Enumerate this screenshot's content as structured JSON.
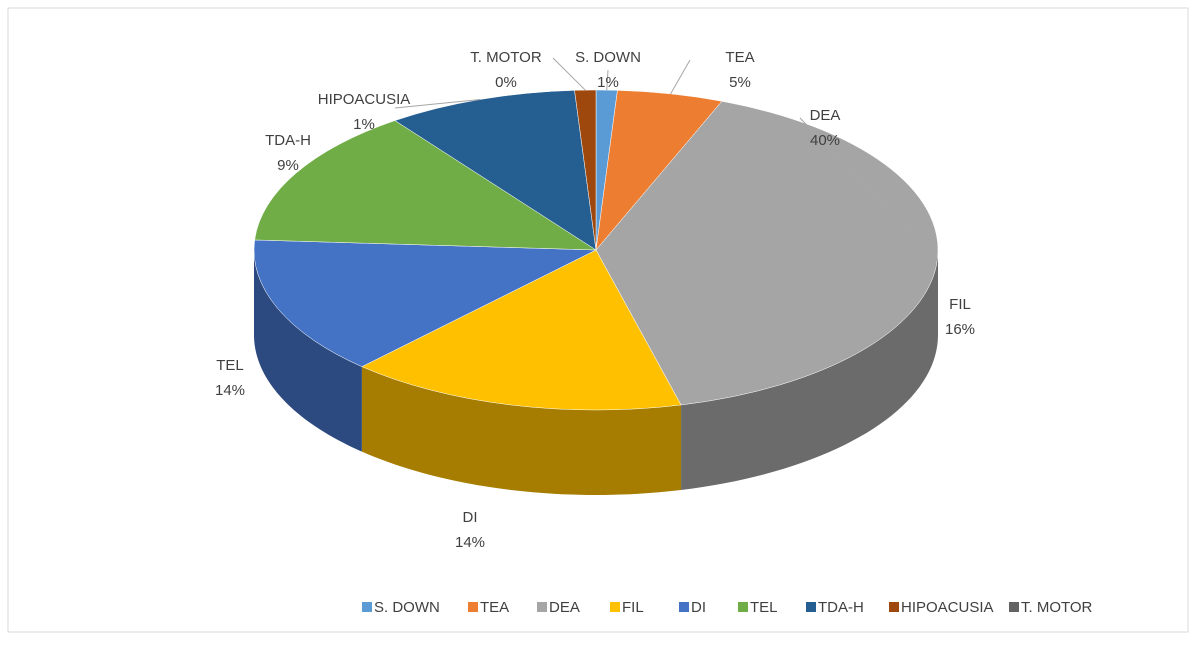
{
  "chart_data": {
    "type": "pie3d",
    "categories": [
      "S. DOWN",
      "TEA",
      "DEA",
      "FIL",
      "DI",
      "TEL",
      "TDA-H",
      "HIPOACUSIA",
      "T. MOTOR"
    ],
    "values": [
      1,
      5,
      40,
      16,
      14,
      14,
      9,
      1,
      0
    ],
    "value_labels": [
      "1%",
      "5%",
      "40%",
      "16%",
      "14%",
      "14%",
      "9%",
      "1%",
      "0%"
    ],
    "colors": [
      "#5b9bd5",
      "#ed7d31",
      "#a5a5a5",
      "#ffc000",
      "#4472c4",
      "#70ad47",
      "#255e91",
      "#9e480e",
      "#636363"
    ],
    "legend": "bottom"
  }
}
